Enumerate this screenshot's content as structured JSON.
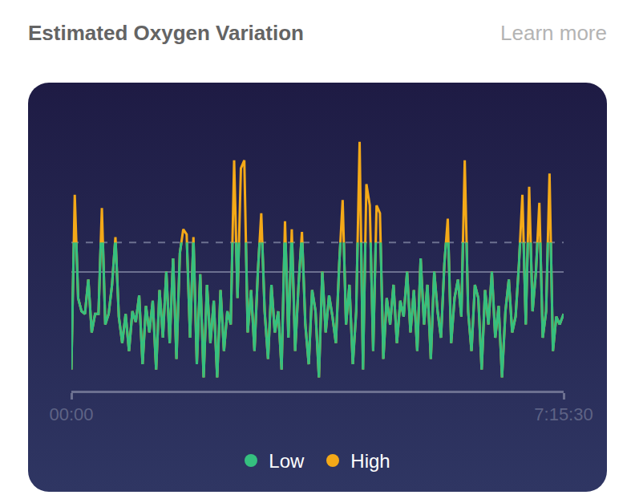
{
  "chart_data": {
    "type": "line",
    "title": "Estimated Oxygen Variation",
    "link": "Learn more",
    "x": [
      0,
      180,
      360,
      540,
      720,
      900,
      1080,
      1260,
      1440,
      1620,
      1800,
      1980,
      2160,
      2340,
      2520,
      2700,
      2880,
      3060,
      3240,
      3420,
      3600,
      3780,
      3960,
      4140,
      4320,
      4500,
      4680,
      4860,
      5040,
      5220,
      5400,
      5580,
      5760,
      5940,
      6120,
      6300,
      6480,
      6660,
      6840,
      7020,
      7200,
      7380,
      7560,
      7740,
      7920,
      8100,
      8280,
      8460,
      8640,
      8820,
      9000,
      9180,
      9360,
      9540,
      9720,
      9900,
      10080,
      10260,
      10440,
      10620,
      10800,
      10980,
      11160,
      11340,
      11520,
      11700,
      11880,
      12060,
      12240,
      12420,
      12600,
      12780,
      12960,
      13140,
      13320,
      13500,
      13680,
      13860,
      14040,
      14220,
      14400,
      14580,
      14760,
      14940,
      15120,
      15300,
      15480,
      15660,
      15840,
      16020,
      16200,
      16380,
      16560,
      16740,
      16920,
      17100,
      17280,
      17460,
      17640,
      17820,
      18000,
      18180,
      18360,
      18540,
      18720,
      18900,
      19080,
      19260,
      19440,
      19620,
      19800,
      19980,
      20160,
      20340,
      20520,
      20700,
      20880,
      21060,
      21240,
      21420,
      21600,
      21780,
      21960,
      22140,
      22320,
      22500,
      22680,
      22860,
      23040,
      23220,
      23400,
      23580,
      23760,
      23940,
      24120,
      24300,
      24480,
      24660,
      24840,
      25020,
      25200,
      25380,
      25560,
      25740,
      25920,
      26130
    ],
    "values": [
      8,
      74,
      35,
      30,
      29,
      42,
      22,
      29,
      29,
      69,
      25,
      29,
      40,
      58,
      28,
      18,
      29,
      15,
      30,
      26,
      36,
      10,
      32,
      22,
      34,
      8,
      38,
      20,
      45,
      18,
      50,
      12,
      52,
      61,
      59,
      20,
      58,
      10,
      44,
      5,
      40,
      18,
      34,
      5,
      38,
      15,
      30,
      25,
      87,
      35,
      84,
      87,
      22,
      38,
      15,
      45,
      67,
      30,
      12,
      40,
      22,
      30,
      8,
      64,
      20,
      61,
      15,
      40,
      60,
      25,
      10,
      38,
      30,
      5,
      45,
      22,
      36,
      28,
      18,
      48,
      72,
      25,
      40,
      10,
      30,
      94,
      8,
      78,
      70,
      15,
      70,
      67,
      12,
      35,
      25,
      40,
      18,
      34,
      28,
      45,
      22,
      38,
      15,
      50,
      25,
      40,
      12,
      45,
      30,
      20,
      48,
      65,
      18,
      35,
      42,
      28,
      87,
      30,
      15,
      40,
      35,
      8,
      38,
      25,
      45,
      20,
      32,
      5,
      30,
      42,
      22,
      28,
      48,
      74,
      25,
      77,
      30,
      45,
      71,
      20,
      30,
      82,
      15,
      28,
      25,
      29
    ],
    "threshold": 56,
    "series": [
      {
        "name": "Low",
        "color": "#35c07f"
      },
      {
        "name": "High",
        "color": "#f4a918"
      }
    ],
    "xlim": [
      0,
      26130
    ],
    "xticks": [
      {
        "value": 0,
        "label": "00:00"
      },
      {
        "value": 26130,
        "label": "7:15:30"
      }
    ],
    "ylim": [
      0,
      100
    ],
    "yticks": [
      45,
      100
    ],
    "grid": true,
    "tick_labels": "x"
  }
}
